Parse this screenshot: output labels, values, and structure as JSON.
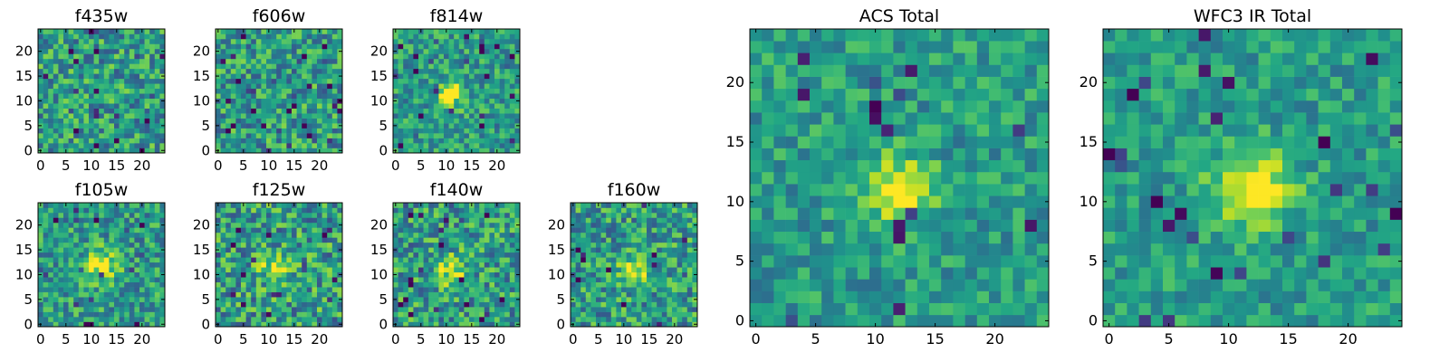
{
  "chart_data": [
    {
      "type": "heatmap",
      "title": "f435w",
      "grid_size": 25,
      "colormap": "viridis",
      "xticks": [
        "0",
        "5",
        "10",
        "15",
        "20"
      ],
      "yticks": [
        "0",
        "5",
        "10",
        "15",
        "20"
      ],
      "noise_level": 0.55,
      "blob": null
    },
    {
      "type": "heatmap",
      "title": "f606w",
      "grid_size": 25,
      "colormap": "viridis",
      "xticks": [
        "0",
        "5",
        "10",
        "15",
        "20"
      ],
      "yticks": [
        "0",
        "5",
        "10",
        "15",
        "20"
      ],
      "noise_level": 0.55,
      "blob": null
    },
    {
      "type": "heatmap",
      "title": "f814w",
      "grid_size": 25,
      "colormap": "viridis",
      "xticks": [
        "0",
        "5",
        "10",
        "15",
        "20"
      ],
      "yticks": [
        "0",
        "5",
        "10",
        "15",
        "20"
      ],
      "noise_level": 0.45,
      "blob": {
        "x": 11,
        "y": 11,
        "sigma": 1.6,
        "amp": 0.7
      }
    },
    {
      "type": "heatmap",
      "title": "f105w",
      "grid_size": 25,
      "colormap": "viridis",
      "xticks": [
        "0",
        "5",
        "10",
        "15",
        "20"
      ],
      "yticks": [
        "0",
        "5",
        "10",
        "15",
        "20"
      ],
      "noise_level": 0.5,
      "blob": {
        "x": 12,
        "y": 12,
        "sigma": 2.0,
        "amp": 0.5
      }
    },
    {
      "type": "heatmap",
      "title": "f125w",
      "grid_size": 25,
      "colormap": "viridis",
      "xticks": [
        "0",
        "5",
        "10",
        "15",
        "20"
      ],
      "yticks": [
        "0",
        "5",
        "10",
        "15",
        "20"
      ],
      "noise_level": 0.6,
      "blob": {
        "x": 11,
        "y": 11,
        "sigma": 2.0,
        "amp": 0.4
      }
    },
    {
      "type": "heatmap",
      "title": "f140w",
      "grid_size": 25,
      "colormap": "viridis",
      "xticks": [
        "0",
        "5",
        "10",
        "15",
        "20"
      ],
      "yticks": [
        "0",
        "5",
        "10",
        "15",
        "20"
      ],
      "noise_level": 0.55,
      "blob": {
        "x": 11,
        "y": 11,
        "sigma": 2.0,
        "amp": 0.4
      }
    },
    {
      "type": "heatmap",
      "title": "f160w",
      "grid_size": 25,
      "colormap": "viridis",
      "xticks": [
        "0",
        "5",
        "10",
        "15",
        "20"
      ],
      "yticks": [
        "0",
        "5",
        "10",
        "15",
        "20"
      ],
      "noise_level": 0.55,
      "blob": {
        "x": 12,
        "y": 11,
        "sigma": 2.0,
        "amp": 0.45
      }
    },
    {
      "type": "heatmap",
      "title": "ACS Total",
      "grid_size": 25,
      "colormap": "viridis",
      "xticks": [
        "0",
        "5",
        "10",
        "15",
        "20"
      ],
      "yticks": [
        "0",
        "5",
        "10",
        "15",
        "20"
      ],
      "noise_level": 0.38,
      "blob": {
        "x": 12,
        "y": 11,
        "sigma": 1.8,
        "amp": 0.55
      }
    },
    {
      "type": "heatmap",
      "title": "WFC3 IR Total",
      "grid_size": 25,
      "colormap": "viridis",
      "xticks": [
        "0",
        "5",
        "10",
        "15",
        "20"
      ],
      "yticks": [
        "0",
        "5",
        "10",
        "15",
        "20"
      ],
      "noise_level": 0.35,
      "blob": {
        "x": 12,
        "y": 11,
        "sigma": 2.2,
        "amp": 0.55
      }
    }
  ]
}
